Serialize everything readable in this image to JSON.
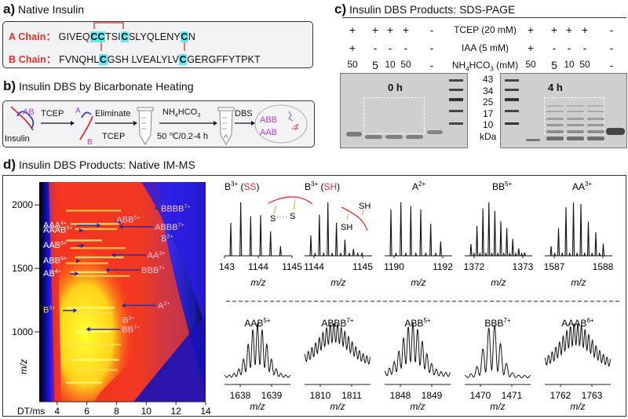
{
  "panel_a": {
    "letter": "a)",
    "title": "Native Insulin",
    "a_chain_label": "A Chain：",
    "a_chain_segments": [
      "GIVEQ",
      "CC",
      "TSI",
      "C",
      "SLYQLENY",
      "C",
      "N"
    ],
    "b_chain_label": "B Chain：",
    "b_chain_segments": [
      "FVNQHL",
      "C",
      "GSH LVEALYLV",
      "C",
      "GERGFFYTPKT"
    ]
  },
  "panel_b": {
    "letter": "b)",
    "title": "Insulin DBS by Bicarbonate Heating",
    "insulin_label": "Insulin",
    "ab_label": "AB",
    "step1": "TCEP",
    "a_label": "A",
    "b_label": "B",
    "step2_top": "Eliminate",
    "step2_bottom": "TCEP",
    "step3_top": "NH4HCO3",
    "step3_bottom": "50 ℃/0.2-4 h",
    "step4": "DBS",
    "product1": "ABB",
    "product2": "AAB"
  },
  "panel_c": {
    "letter": "c)",
    "title": "Insulin DBS Products: SDS-PAGE",
    "rows": [
      {
        "label": "TCEP (20 mM)",
        "left": [
          "+",
          "+",
          "+",
          "+",
          "-"
        ],
        "right": [
          "+",
          "+",
          "+",
          "+",
          "-"
        ]
      },
      {
        "label": "IAA (5 mM)",
        "left": [
          "+",
          "-",
          "-",
          "-",
          "-"
        ],
        "right": [
          "+",
          "-",
          "-",
          "-",
          "-"
        ]
      },
      {
        "label": "NH4HCO3 (mM)",
        "left": [
          "50",
          "5",
          "10",
          "50",
          "-"
        ],
        "right": [
          "50",
          "5",
          "10",
          "50",
          "-"
        ]
      }
    ],
    "gel_left_label": "0 h",
    "gel_right_label": "4 h",
    "ladder_kda": [
      "43",
      "34",
      "25",
      "17",
      "10"
    ],
    "ladder_unit": "kDa"
  },
  "panel_d": {
    "letter": "d)",
    "title": "Insulin DBS Products: Native IM-MS",
    "heatmap": {
      "xlabel": "DT/ms",
      "ylabel": "m/z",
      "xticks": [
        "4",
        "6",
        "8",
        "10",
        "12",
        "14"
      ],
      "yticks": [
        "2000",
        "1500",
        "1000"
      ],
      "xlim": [
        2.8,
        14
      ],
      "ylim": [
        450,
        2180
      ],
      "annotations": [
        {
          "text": "BBBB",
          "charge": "7+",
          "dt": 10.6,
          "mz": 1955,
          "side": "right"
        },
        {
          "text": "ABB",
          "charge": "5+",
          "dt": 8.0,
          "mz": 1850,
          "side": "right"
        },
        {
          "text": "ABBB",
          "charge": "7+",
          "dt": 8.2,
          "mz": 1810,
          "side": "right"
        },
        {
          "text": "B",
          "charge": "2+",
          "dt": 11.5,
          "mz": 1720,
          "side": "right"
        },
        {
          "text": "AA",
          "charge": "3+",
          "dt": 7.7,
          "mz": 1587,
          "side": "right"
        },
        {
          "text": "BBB",
          "charge": "7+",
          "dt": 7.3,
          "mz": 1470,
          "side": "right"
        },
        {
          "text": "A",
          "charge": "2+",
          "dt": 8.4,
          "mz": 1190,
          "side": "right"
        },
        {
          "text": "B",
          "charge": "3+",
          "dt": 8.2,
          "mz": 1144,
          "side": "right-label"
        },
        {
          "text": "BB",
          "charge": "7+",
          "dt": 6.0,
          "mz": 1002,
          "side": "right"
        },
        {
          "text": "AAA",
          "charge": "4+",
          "dt": 6.9,
          "mz": 1820,
          "side": "left"
        },
        {
          "text": "AAAB",
          "charge": "5+",
          "dt": 5.7,
          "mz": 1780,
          "side": "left"
        },
        {
          "text": "AAB",
          "charge": "5+",
          "dt": 5.8,
          "mz": 1660,
          "side": "left"
        },
        {
          "text": "ABB",
          "charge": "6+",
          "dt": 5.5,
          "mz": 1540,
          "side": "left"
        },
        {
          "text": "AB",
          "charge": "4+",
          "dt": 5.4,
          "mz": 1440,
          "side": "left"
        },
        {
          "text": "B",
          "charge": "3+",
          "dt": 5.3,
          "mz": 1150,
          "side": "left"
        }
      ]
    },
    "spectra_top": [
      {
        "name": "B",
        "charge": "3+",
        "suffix": "(SS)",
        "ticks": [
          "1143",
          "1144",
          "1145"
        ],
        "xlabel": "m/z",
        "peaks": [
          0.62,
          1.0,
          0.74,
          0.76,
          0.46,
          0.18
        ]
      },
      {
        "name": "B",
        "charge": "3+",
        "suffix": "(SH)",
        "ticks": [
          "1144",
          "1145"
        ],
        "xlabel": "m/z",
        "peaks": [
          0.38,
          0.77,
          1.0,
          0.62,
          0.3,
          0.13,
          0.05
        ]
      },
      {
        "name": "A",
        "charge": "2+",
        "suffix": "",
        "ticks": [
          "1190",
          "1192"
        ],
        "xlabel": "m/z",
        "peaks": [
          0.87,
          1.0,
          0.93,
          0.87,
          0.6,
          0.27
        ]
      },
      {
        "name": "BB",
        "charge": "5+",
        "suffix": "",
        "ticks": [
          "1372",
          "1373"
        ],
        "xlabel": "m/z",
        "peaks": [
          0.22,
          0.56,
          0.89,
          1.0,
          0.84,
          0.65,
          0.52,
          0.32,
          0.14,
          0.06
        ]
      },
      {
        "name": "AA",
        "charge": "3+",
        "suffix": "",
        "ticks": [
          "1587",
          "1588"
        ],
        "xlabel": "m/z",
        "peaks": [
          0.18,
          0.52,
          0.91,
          1.0,
          0.97,
          0.64,
          0.44,
          0.23
        ]
      }
    ],
    "spectra_bottom": [
      {
        "name": "AAB",
        "charge": "5+",
        "ticks": [
          "1638",
          "1639"
        ],
        "xlabel": "m/z"
      },
      {
        "name": "ABBB",
        "charge": "7+",
        "ticks": [
          "1810",
          "1811"
        ],
        "xlabel": "m/z"
      },
      {
        "name": "ABB",
        "charge": "5+",
        "ticks": [
          "1848",
          "1849"
        ],
        "xlabel": "m/z"
      },
      {
        "name": "BBB",
        "charge": "7+",
        "ticks": [
          "1470",
          "1471"
        ],
        "xlabel": "m/z"
      },
      {
        "name": "AAAB",
        "charge": "6+",
        "ticks": [
          "1762",
          "1763"
        ],
        "xlabel": "m/z"
      }
    ],
    "ss_labels": [
      "S",
      "S"
    ],
    "sh_labels": [
      "SH",
      "SH"
    ]
  },
  "colors": {
    "chain_label": "#e0312b",
    "cysteine_highlight": "#66e8ef",
    "disulfide_link": "#e0312b",
    "product_text": "#b43ec4",
    "annotation_arrow": "#2a2a9c"
  }
}
